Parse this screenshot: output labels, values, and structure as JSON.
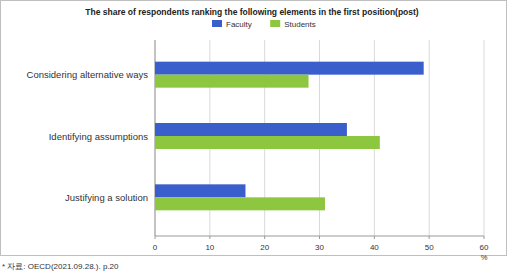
{
  "chart_data": {
    "type": "bar",
    "orientation": "horizontal",
    "title": "The share of respondents ranking the following elements in the first position(post)",
    "categories": [
      "Considering alternative ways",
      "Identifying assumptions",
      "Justifying a solution"
    ],
    "series": [
      {
        "name": "Faculty",
        "color": "#3a5fcd",
        "values": [
          49,
          35,
          16.5
        ]
      },
      {
        "name": "Students",
        "color": "#8dc63f",
        "values": [
          28,
          41,
          31
        ]
      }
    ],
    "xlabel": "%",
    "xlim": [
      0,
      60
    ],
    "xticks": [
      0,
      10,
      20,
      30,
      40,
      50,
      60
    ],
    "grid": true,
    "legend": "top",
    "source": "* 자료: OECD(2021.09.28.). p.20"
  }
}
